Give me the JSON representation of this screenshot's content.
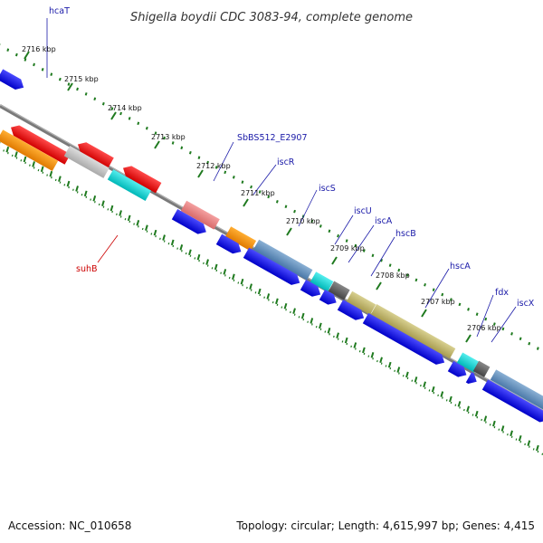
{
  "title": "Shigella boydii CDC 3083-94, complete genome",
  "accession": "Accession: NC_010658",
  "summary": "Topology: circular; Length: 4,615,997 bp; Genes: 4,415",
  "scale_labels": [
    "2716 kbp",
    "2715 kbp",
    "2714 kbp",
    "2713 kbp",
    "2712 kbp",
    "2711 kbp",
    "2710 kbp",
    "2709 kbp",
    "2708 kbp",
    "2707 kbp",
    "2706 kbp"
  ],
  "gene_labels": [
    {
      "text": "hcaT",
      "color": "#1a1aa8"
    },
    {
      "text": "suhB",
      "color": "#cc0000"
    },
    {
      "text": "SbBS512_E2907",
      "color": "#1a1aa8"
    },
    {
      "text": "iscR",
      "color": "#1a1aa8"
    },
    {
      "text": "iscS",
      "color": "#1a1aa8"
    },
    {
      "text": "iscU",
      "color": "#1a1aa8"
    },
    {
      "text": "iscA",
      "color": "#1a1aa8"
    },
    {
      "text": "hscB",
      "color": "#1a1aa8"
    },
    {
      "text": "hscA",
      "color": "#1a1aa8"
    },
    {
      "text": "fdx",
      "color": "#1a1aa8"
    },
    {
      "text": "iscX",
      "color": "#1a1aa8"
    }
  ],
  "colors": {
    "cds_forward": "#0000ee",
    "cds_reverse": "#ee0000",
    "backbone": "#777777",
    "ticks": "#1f7a1f"
  }
}
